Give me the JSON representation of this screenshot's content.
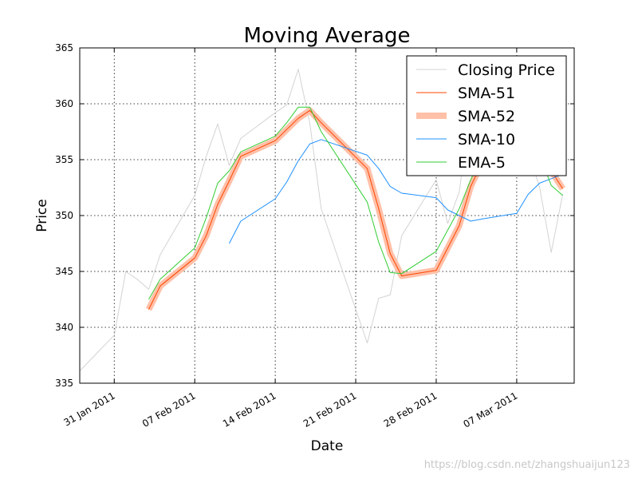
{
  "chart_data": {
    "type": "line",
    "title": "Moving Average",
    "xlabel": "Date",
    "ylabel": "Price",
    "ylim": [
      335,
      365
    ],
    "xlim": [
      "2011-01-28",
      "2011-03-12"
    ],
    "grid": true,
    "legend": "top-right",
    "yticks": [
      335,
      340,
      345,
      350,
      355,
      360,
      365
    ],
    "xticks": [
      {
        "date": "2011-01-31",
        "label": "31 Jan 2011"
      },
      {
        "date": "2011-02-07",
        "label": "07 Feb 2011"
      },
      {
        "date": "2011-02-14",
        "label": "14 Feb 2011"
      },
      {
        "date": "2011-02-21",
        "label": "21 Feb 2011"
      },
      {
        "date": "2011-02-28",
        "label": "28 Feb 2011"
      },
      {
        "date": "2011-03-07",
        "label": "07 Mar 2011"
      }
    ],
    "series": [
      {
        "name": "Closing Price",
        "color": "#d3d3d3",
        "width": 1,
        "alpha": 1,
        "points": [
          [
            "2011-01-28",
            336.1
          ],
          [
            "2011-01-31",
            339.3
          ],
          [
            "2011-02-01",
            345.0
          ],
          [
            "2011-02-02",
            344.3
          ],
          [
            "2011-02-03",
            343.4
          ],
          [
            "2011-02-04",
            346.5
          ],
          [
            "2011-02-07",
            351.8
          ],
          [
            "2011-02-08",
            355.3
          ],
          [
            "2011-02-09",
            358.2
          ],
          [
            "2011-02-10",
            354.5
          ],
          [
            "2011-02-11",
            356.9
          ],
          [
            "2011-02-14",
            359.2
          ],
          [
            "2011-02-15",
            359.9
          ],
          [
            "2011-02-16",
            363.1
          ],
          [
            "2011-02-17",
            358.3
          ],
          [
            "2011-02-18",
            350.6
          ],
          [
            "2011-02-22",
            338.6
          ],
          [
            "2011-02-23",
            342.6
          ],
          [
            "2011-02-24",
            342.9
          ],
          [
            "2011-02-25",
            348.2
          ],
          [
            "2011-02-28",
            353.2
          ],
          [
            "2011-03-01",
            349.3
          ],
          [
            "2011-03-02",
            352.1
          ],
          [
            "2011-03-03",
            359.6
          ],
          [
            "2011-03-04",
            360.0
          ],
          [
            "2011-03-07",
            355.4
          ],
          [
            "2011-03-08",
            355.8
          ],
          [
            "2011-03-09",
            352.5
          ],
          [
            "2011-03-10",
            346.7
          ],
          [
            "2011-03-11",
            351.9
          ]
        ]
      },
      {
        "name": "SMA-52",
        "color": "#ffc0a8",
        "width": 8,
        "alpha": 1,
        "points": [
          [
            "2011-02-03",
            341.6
          ],
          [
            "2011-02-04",
            343.7
          ],
          [
            "2011-02-07",
            346.2
          ],
          [
            "2011-02-08",
            348.2
          ],
          [
            "2011-02-09",
            351.0
          ],
          [
            "2011-02-10",
            353.1
          ],
          [
            "2011-02-11",
            355.3
          ],
          [
            "2011-02-14",
            356.7
          ],
          [
            "2011-02-15",
            357.7
          ],
          [
            "2011-02-16",
            358.7
          ],
          [
            "2011-02-17",
            359.4
          ],
          [
            "2011-02-18",
            358.3
          ],
          [
            "2011-02-22",
            354.2
          ],
          [
            "2011-02-23",
            350.6
          ],
          [
            "2011-02-24",
            346.6
          ],
          [
            "2011-02-25",
            344.6
          ],
          [
            "2011-02-28",
            345.1
          ],
          [
            "2011-03-01",
            347.1
          ],
          [
            "2011-03-02",
            349.1
          ],
          [
            "2011-03-03",
            352.6
          ],
          [
            "2011-03-04",
            354.8
          ],
          [
            "2011-03-07",
            356.7
          ],
          [
            "2011-03-08",
            357.4
          ],
          [
            "2011-03-09",
            356.4
          ],
          [
            "2011-03-10",
            354.0
          ],
          [
            "2011-03-11",
            352.4
          ]
        ]
      },
      {
        "name": "SMA-51",
        "color": "#ff4500",
        "width": 1,
        "alpha": 1,
        "points": [
          [
            "2011-02-03",
            341.6
          ],
          [
            "2011-02-04",
            343.7
          ],
          [
            "2011-02-07",
            346.2
          ],
          [
            "2011-02-08",
            348.2
          ],
          [
            "2011-02-09",
            351.0
          ],
          [
            "2011-02-10",
            353.1
          ],
          [
            "2011-02-11",
            355.3
          ],
          [
            "2011-02-14",
            356.7
          ],
          [
            "2011-02-15",
            357.7
          ],
          [
            "2011-02-16",
            358.7
          ],
          [
            "2011-02-17",
            359.4
          ],
          [
            "2011-02-18",
            358.3
          ],
          [
            "2011-02-22",
            354.2
          ],
          [
            "2011-02-23",
            350.6
          ],
          [
            "2011-02-24",
            346.6
          ],
          [
            "2011-02-25",
            344.6
          ],
          [
            "2011-02-28",
            345.1
          ],
          [
            "2011-03-01",
            347.1
          ],
          [
            "2011-03-02",
            349.1
          ],
          [
            "2011-03-03",
            352.6
          ],
          [
            "2011-03-04",
            354.8
          ],
          [
            "2011-03-07",
            356.7
          ],
          [
            "2011-03-08",
            357.4
          ],
          [
            "2011-03-09",
            356.4
          ],
          [
            "2011-03-10",
            354.0
          ],
          [
            "2011-03-11",
            352.4
          ]
        ]
      },
      {
        "name": "SMA-10",
        "color": "#1e90ff",
        "width": 1,
        "alpha": 1,
        "points": [
          [
            "2011-02-10",
            347.5
          ],
          [
            "2011-02-11",
            349.5
          ],
          [
            "2011-02-14",
            351.5
          ],
          [
            "2011-02-15",
            353.0
          ],
          [
            "2011-02-16",
            354.9
          ],
          [
            "2011-02-17",
            356.4
          ],
          [
            "2011-02-18",
            356.8
          ],
          [
            "2011-02-22",
            355.4
          ],
          [
            "2011-02-23",
            354.2
          ],
          [
            "2011-02-24",
            352.6
          ],
          [
            "2011-02-25",
            352.0
          ],
          [
            "2011-02-28",
            351.6
          ],
          [
            "2011-03-01",
            350.5
          ],
          [
            "2011-03-02",
            350.0
          ],
          [
            "2011-03-03",
            349.5
          ],
          [
            "2011-03-04",
            349.7
          ],
          [
            "2011-03-07",
            350.2
          ],
          [
            "2011-03-08",
            351.9
          ],
          [
            "2011-03-09",
            352.9
          ],
          [
            "2011-03-10",
            353.3
          ],
          [
            "2011-03-11",
            353.7
          ]
        ]
      },
      {
        "name": "EMA-5",
        "color": "#32cd32",
        "width": 1,
        "alpha": 1,
        "points": [
          [
            "2011-02-03",
            342.5
          ],
          [
            "2011-02-04",
            344.3
          ],
          [
            "2011-02-07",
            347.1
          ],
          [
            "2011-02-08",
            349.8
          ],
          [
            "2011-02-09",
            352.9
          ],
          [
            "2011-02-10",
            354.0
          ],
          [
            "2011-02-11",
            355.7
          ],
          [
            "2011-02-14",
            357.1
          ],
          [
            "2011-02-15",
            358.3
          ],
          [
            "2011-02-16",
            359.7
          ],
          [
            "2011-02-17",
            359.7
          ],
          [
            "2011-02-18",
            357.5
          ],
          [
            "2011-02-22",
            351.2
          ],
          [
            "2011-02-23",
            347.6
          ],
          [
            "2011-02-24",
            344.9
          ],
          [
            "2011-02-25",
            344.8
          ],
          [
            "2011-02-28",
            346.8
          ],
          [
            "2011-03-01",
            348.7
          ],
          [
            "2011-03-02",
            350.6
          ],
          [
            "2011-03-03",
            353.2
          ],
          [
            "2011-03-04",
            355.4
          ],
          [
            "2011-03-07",
            356.5
          ],
          [
            "2011-03-08",
            356.8
          ],
          [
            "2011-03-09",
            355.4
          ],
          [
            "2011-03-10",
            352.7
          ],
          [
            "2011-03-11",
            351.8
          ]
        ]
      }
    ],
    "legend_order": [
      "Closing Price",
      "SMA-51",
      "SMA-52",
      "SMA-10",
      "EMA-5"
    ]
  },
  "watermark": "https://blog.csdn.net/zhangshuaijun123"
}
